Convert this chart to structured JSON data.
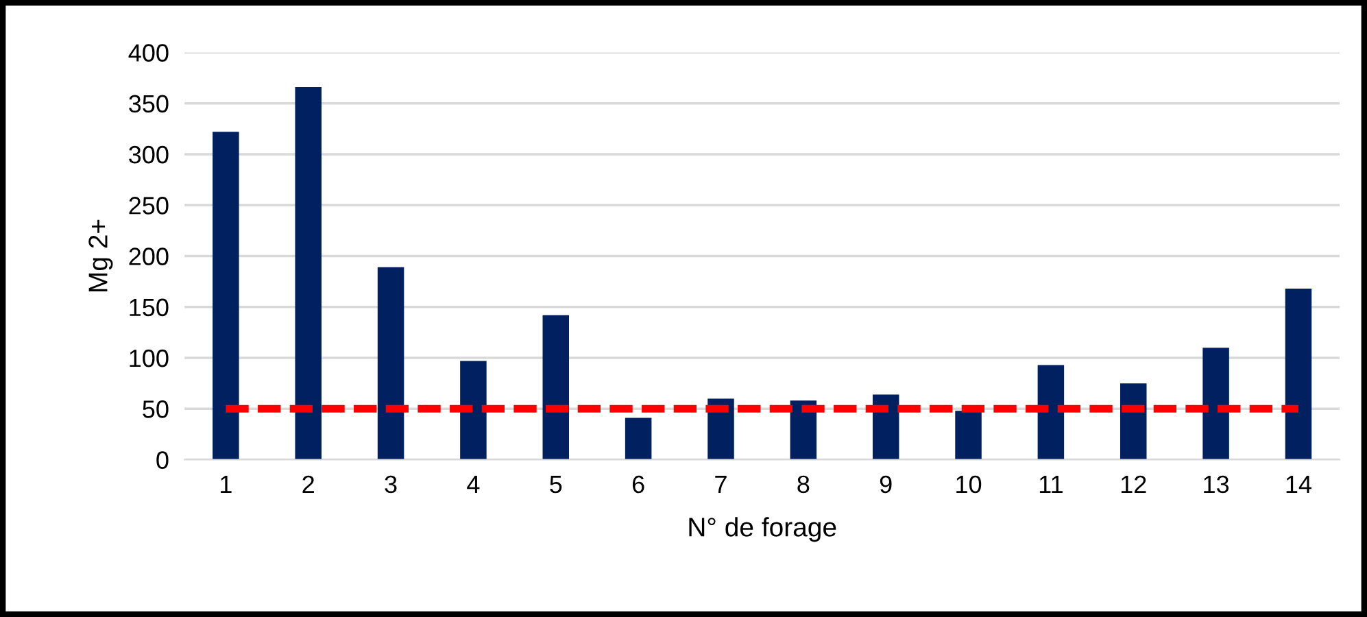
{
  "chart_data": {
    "type": "bar",
    "xlabel": "N° de forage",
    "ylabel": "Mg 2+",
    "categories": [
      "1",
      "2",
      "3",
      "4",
      "5",
      "6",
      "7",
      "8",
      "9",
      "10",
      "11",
      "12",
      "13",
      "14"
    ],
    "values": [
      322,
      366,
      189,
      97,
      142,
      41,
      60,
      58,
      64,
      48,
      93,
      75,
      110,
      168
    ],
    "color": "#002060",
    "ylim": [
      0,
      400
    ],
    "yticks": [
      0,
      50,
      100,
      150,
      200,
      250,
      300,
      350,
      400
    ],
    "grid": "y",
    "ref_lines": [
      {
        "axis": "y",
        "value": 50,
        "color": "#ff0000",
        "line_style": "dashed"
      }
    ]
  }
}
